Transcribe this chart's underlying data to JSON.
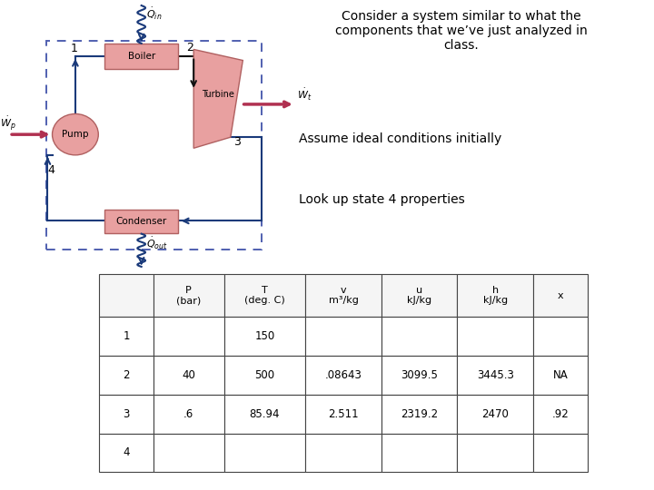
{
  "title_text": "Consider a system similar to what the\ncomponents that we’ve just analyzed in\nclass.",
  "subtitle1": "Assume ideal conditions initially",
  "subtitle2": "Look up state 4 properties",
  "table_headers": [
    "",
    "P\n(bar)",
    "T\n(deg. C)",
    "v\nm³/kg",
    "u\nkJ/kg",
    "h\nkJ/kg",
    "x"
  ],
  "table_rows": [
    [
      "1",
      "",
      "150",
      "",
      "",
      "",
      ""
    ],
    [
      "2",
      "40",
      "500",
      ".08643",
      "3099.5",
      "3445.3",
      "NA"
    ],
    [
      "3",
      ".6",
      "85.94",
      "2.511",
      "2319.2",
      "2470",
      ".92"
    ],
    [
      "4",
      "",
      "",
      "",
      "",
      "",
      ""
    ]
  ],
  "pink": "#e8a0a0",
  "dark_pink": "#b06060",
  "border_blue": "#5060b0",
  "arrow_blue": "#1a3a7a",
  "arrow_dark": "#111111",
  "red_arrow": "#b03050",
  "bg_color": "#ffffff"
}
